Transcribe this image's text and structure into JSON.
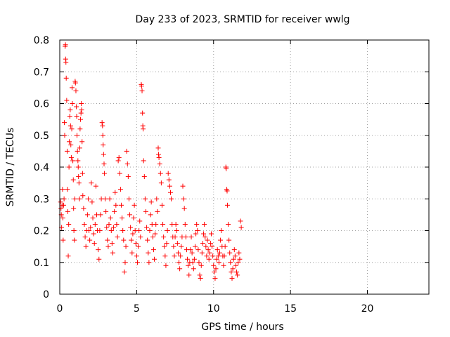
{
  "chart_data": {
    "type": "scatter",
    "title": "Day 233 of 2023, SRMTID for receiver wwlg",
    "xlabel": "GPS time / hours",
    "ylabel": "SRMTID / TECUs",
    "xlim": [
      0,
      24
    ],
    "ylim": [
      0,
      0.8
    ],
    "xticks": [
      0,
      5,
      10,
      15,
      20
    ],
    "xtick_labels": [
      "0",
      "5",
      "10",
      "15",
      "20"
    ],
    "yticks": [
      0,
      0.1,
      0.2,
      0.3,
      0.4,
      0.5,
      0.6,
      0.7,
      0.8
    ],
    "ytick_labels": [
      "0",
      "0.1",
      "0.2",
      "0.3",
      "0.4",
      "0.5",
      "0.6",
      "0.7",
      "0.8"
    ],
    "grid": true,
    "marker": "+",
    "color": "#ff0000",
    "series": [
      {
        "name": "SRMTID",
        "points": [
          [
            0.05,
            0.29
          ],
          [
            0.08,
            0.27
          ],
          [
            0.1,
            0.25
          ],
          [
            0.12,
            0.21
          ],
          [
            0.15,
            0.28
          ],
          [
            0.18,
            0.33
          ],
          [
            0.2,
            0.24
          ],
          [
            0.22,
            0.17
          ],
          [
            0.25,
            0.28
          ],
          [
            0.28,
            0.3
          ],
          [
            0.3,
            0.54
          ],
          [
            0.32,
            0.5
          ],
          [
            0.35,
            0.78
          ],
          [
            0.37,
            0.785
          ],
          [
            0.38,
            0.74
          ],
          [
            0.4,
            0.73
          ],
          [
            0.42,
            0.68
          ],
          [
            0.45,
            0.61
          ],
          [
            0.48,
            0.45
          ],
          [
            0.5,
            0.33
          ],
          [
            0.52,
            0.26
          ],
          [
            0.55,
            0.12
          ],
          [
            0.58,
            0.22
          ],
          [
            0.6,
            0.4
          ],
          [
            0.62,
            0.48
          ],
          [
            0.65,
            0.56
          ],
          [
            0.68,
            0.58
          ],
          [
            0.7,
            0.53
          ],
          [
            0.72,
            0.47
          ],
          [
            0.75,
            0.43
          ],
          [
            0.78,
            0.52
          ],
          [
            0.8,
            0.65
          ],
          [
            0.82,
            0.6
          ],
          [
            0.85,
            0.42
          ],
          [
            0.88,
            0.36
          ],
          [
            0.9,
            0.27
          ],
          [
            0.92,
            0.2
          ],
          [
            0.95,
            0.17
          ],
          [
            0.98,
            0.3
          ],
          [
            1.0,
            0.67
          ],
          [
            1.02,
            0.665
          ],
          [
            1.05,
            0.64
          ],
          [
            1.08,
            0.59
          ],
          [
            1.1,
            0.56
          ],
          [
            1.12,
            0.5
          ],
          [
            1.15,
            0.45
          ],
          [
            1.18,
            0.42
          ],
          [
            1.2,
            0.4
          ],
          [
            1.22,
            0.37
          ],
          [
            1.25,
            0.35
          ],
          [
            1.28,
            0.3
          ],
          [
            1.3,
            0.46
          ],
          [
            1.32,
            0.52
          ],
          [
            1.35,
            0.55
          ],
          [
            1.38,
            0.57
          ],
          [
            1.4,
            0.6
          ],
          [
            1.42,
            0.58
          ],
          [
            1.45,
            0.48
          ],
          [
            1.48,
            0.38
          ],
          [
            1.5,
            0.31
          ],
          [
            1.55,
            0.27
          ],
          [
            1.6,
            0.22
          ],
          [
            1.65,
            0.18
          ],
          [
            1.7,
            0.15
          ],
          [
            1.75,
            0.2
          ],
          [
            1.8,
            0.25
          ],
          [
            1.85,
            0.3
          ],
          [
            1.9,
            0.2
          ],
          [
            1.95,
            0.17
          ],
          [
            2.0,
            0.21
          ],
          [
            2.05,
            0.35
          ],
          [
            2.1,
            0.29
          ],
          [
            2.15,
            0.24
          ],
          [
            2.2,
            0.19
          ],
          [
            2.25,
            0.16
          ],
          [
            2.3,
            0.22
          ],
          [
            2.35,
            0.34
          ],
          [
            2.4,
            0.25
          ],
          [
            2.45,
            0.2
          ],
          [
            2.5,
            0.14
          ],
          [
            2.55,
            0.11
          ],
          [
            2.6,
            0.2
          ],
          [
            2.65,
            0.25
          ],
          [
            2.7,
            0.3
          ],
          [
            2.75,
            0.54
          ],
          [
            2.78,
            0.53
          ],
          [
            2.8,
            0.5
          ],
          [
            2.82,
            0.47
          ],
          [
            2.85,
            0.44
          ],
          [
            2.88,
            0.41
          ],
          [
            2.9,
            0.38
          ],
          [
            2.95,
            0.3
          ],
          [
            3.0,
            0.26
          ],
          [
            3.05,
            0.21
          ],
          [
            3.1,
            0.17
          ],
          [
            3.15,
            0.15
          ],
          [
            3.2,
            0.22
          ],
          [
            3.25,
            0.3
          ],
          [
            3.3,
            0.24
          ],
          [
            3.35,
            0.2
          ],
          [
            3.4,
            0.16
          ],
          [
            3.45,
            0.13
          ],
          [
            3.5,
            0.21
          ],
          [
            3.55,
            0.26
          ],
          [
            3.6,
            0.32
          ],
          [
            3.65,
            0.28
          ],
          [
            3.7,
            0.22
          ],
          [
            3.75,
            0.18
          ],
          [
            3.8,
            0.42
          ],
          [
            3.85,
            0.43
          ],
          [
            3.9,
            0.38
          ],
          [
            3.95,
            0.33
          ],
          [
            4.0,
            0.28
          ],
          [
            4.05,
            0.24
          ],
          [
            4.1,
            0.2
          ],
          [
            4.15,
            0.17
          ],
          [
            4.2,
            0.07
          ],
          [
            4.25,
            0.1
          ],
          [
            4.3,
            0.15
          ],
          [
            4.35,
            0.45
          ],
          [
            4.4,
            0.41
          ],
          [
            4.45,
            0.37
          ],
          [
            4.5,
            0.3
          ],
          [
            4.55,
            0.25
          ],
          [
            4.6,
            0.21
          ],
          [
            4.65,
            0.17
          ],
          [
            4.7,
            0.13
          ],
          [
            4.75,
            0.19
          ],
          [
            4.8,
            0.24
          ],
          [
            4.85,
            0.28
          ],
          [
            4.9,
            0.2
          ],
          [
            4.95,
            0.16
          ],
          [
            5.0,
            0.12
          ],
          [
            5.05,
            0.1
          ],
          [
            5.1,
            0.15
          ],
          [
            5.15,
            0.2
          ],
          [
            5.2,
            0.23
          ],
          [
            5.25,
            0.18
          ],
          [
            5.3,
            0.66
          ],
          [
            5.32,
            0.655
          ],
          [
            5.35,
            0.64
          ],
          [
            5.38,
            0.57
          ],
          [
            5.4,
            0.53
          ],
          [
            5.42,
            0.52
          ],
          [
            5.45,
            0.42
          ],
          [
            5.5,
            0.37
          ],
          [
            5.55,
            0.3
          ],
          [
            5.6,
            0.26
          ],
          [
            5.65,
            0.21
          ],
          [
            5.7,
            0.17
          ],
          [
            5.75,
            0.13
          ],
          [
            5.8,
            0.1
          ],
          [
            5.85,
            0.2
          ],
          [
            5.9,
            0.25
          ],
          [
            5.95,
            0.29
          ],
          [
            6.0,
            0.22
          ],
          [
            6.05,
            0.18
          ],
          [
            6.1,
            0.14
          ],
          [
            6.15,
            0.11
          ],
          [
            6.2,
            0.19
          ],
          [
            6.25,
            0.22
          ],
          [
            6.3,
            0.3
          ],
          [
            6.35,
            0.26
          ],
          [
            6.4,
            0.46
          ],
          [
            6.42,
            0.44
          ],
          [
            6.45,
            0.43
          ],
          [
            6.5,
            0.41
          ],
          [
            6.55,
            0.38
          ],
          [
            6.6,
            0.35
          ],
          [
            6.65,
            0.28
          ],
          [
            6.7,
            0.22
          ],
          [
            6.75,
            0.18
          ],
          [
            6.8,
            0.15
          ],
          [
            6.85,
            0.12
          ],
          [
            6.9,
            0.09
          ],
          [
            6.95,
            0.16
          ],
          [
            7.0,
            0.2
          ],
          [
            7.05,
            0.38
          ],
          [
            7.1,
            0.36
          ],
          [
            7.15,
            0.34
          ],
          [
            7.2,
            0.32
          ],
          [
            7.25,
            0.3
          ],
          [
            7.3,
            0.22
          ],
          [
            7.35,
            0.18
          ],
          [
            7.4,
            0.15
          ],
          [
            7.45,
            0.12
          ],
          [
            7.5,
            0.18
          ],
          [
            7.55,
            0.22
          ],
          [
            7.6,
            0.2
          ],
          [
            7.65,
            0.16
          ],
          [
            7.7,
            0.13
          ],
          [
            7.75,
            0.1
          ],
          [
            7.8,
            0.08
          ],
          [
            7.85,
            0.12
          ],
          [
            7.9,
            0.15
          ],
          [
            7.95,
            0.18
          ],
          [
            8.0,
            0.34
          ],
          [
            8.05,
            0.3
          ],
          [
            8.1,
            0.27
          ],
          [
            8.15,
            0.22
          ],
          [
            8.2,
            0.18
          ],
          [
            8.25,
            0.14
          ],
          [
            8.3,
            0.11
          ],
          [
            8.35,
            0.09
          ],
          [
            8.4,
            0.06
          ],
          [
            8.45,
            0.1
          ],
          [
            8.5,
            0.14
          ],
          [
            8.55,
            0.18
          ],
          [
            8.6,
            0.13
          ],
          [
            8.65,
            0.1
          ],
          [
            8.7,
            0.08
          ],
          [
            8.75,
            0.11
          ],
          [
            8.8,
            0.15
          ],
          [
            8.85,
            0.19
          ],
          [
            8.9,
            0.22
          ],
          [
            8.95,
            0.2
          ],
          [
            9.0,
            0.14
          ],
          [
            9.05,
            0.1
          ],
          [
            9.1,
            0.06
          ],
          [
            9.15,
            0.05
          ],
          [
            9.2,
            0.09
          ],
          [
            9.25,
            0.13
          ],
          [
            9.3,
            0.16
          ],
          [
            9.35,
            0.19
          ],
          [
            9.4,
            0.22
          ],
          [
            9.45,
            0.18
          ],
          [
            9.5,
            0.15
          ],
          [
            9.55,
            0.12
          ],
          [
            9.6,
            0.17
          ],
          [
            9.65,
            0.14
          ],
          [
            9.7,
            0.11
          ],
          [
            9.75,
            0.13
          ],
          [
            9.8,
            0.16
          ],
          [
            9.85,
            0.19
          ],
          [
            9.9,
            0.15
          ],
          [
            9.95,
            0.12
          ],
          [
            10.0,
            0.09
          ],
          [
            10.05,
            0.07
          ],
          [
            10.1,
            0.05
          ],
          [
            10.15,
            0.08
          ],
          [
            10.2,
            0.11
          ],
          [
            10.25,
            0.14
          ],
          [
            10.3,
            0.12
          ],
          [
            10.35,
            0.1
          ],
          [
            10.4,
            0.13
          ],
          [
            10.45,
            0.17
          ],
          [
            10.5,
            0.2
          ],
          [
            10.55,
            0.15
          ],
          [
            10.6,
            0.12
          ],
          [
            10.65,
            0.09
          ],
          [
            10.7,
            0.12
          ],
          [
            10.75,
            0.15
          ],
          [
            10.8,
            0.4
          ],
          [
            10.82,
            0.395
          ],
          [
            10.85,
            0.33
          ],
          [
            10.88,
            0.325
          ],
          [
            10.9,
            0.28
          ],
          [
            10.95,
            0.22
          ],
          [
            11.0,
            0.17
          ],
          [
            11.05,
            0.13
          ],
          [
            11.1,
            0.1
          ],
          [
            11.15,
            0.07
          ],
          [
            11.2,
            0.05
          ],
          [
            11.25,
            0.08
          ],
          [
            11.3,
            0.11
          ],
          [
            11.35,
            0.14
          ],
          [
            11.4,
            0.12
          ],
          [
            11.45,
            0.09
          ],
          [
            11.5,
            0.07
          ],
          [
            11.55,
            0.06
          ],
          [
            11.6,
            0.1
          ],
          [
            11.65,
            0.13
          ],
          [
            11.7,
            0.11
          ],
          [
            11.75,
            0.23
          ],
          [
            11.8,
            0.21
          ]
        ]
      }
    ]
  }
}
